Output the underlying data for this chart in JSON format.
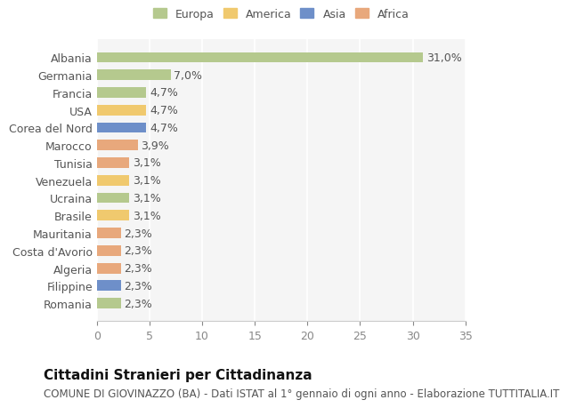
{
  "categories": [
    "Albania",
    "Germania",
    "Francia",
    "USA",
    "Corea del Nord",
    "Marocco",
    "Tunisia",
    "Venezuela",
    "Ucraina",
    "Brasile",
    "Mauritania",
    "Costa d'Avorio",
    "Algeria",
    "Filippine",
    "Romania"
  ],
  "values": [
    31.0,
    7.0,
    4.7,
    4.7,
    4.7,
    3.9,
    3.1,
    3.1,
    3.1,
    3.1,
    2.3,
    2.3,
    2.3,
    2.3,
    2.3
  ],
  "labels": [
    "31,0%",
    "7,0%",
    "4,7%",
    "4,7%",
    "4,7%",
    "3,9%",
    "3,1%",
    "3,1%",
    "3,1%",
    "3,1%",
    "2,3%",
    "2,3%",
    "2,3%",
    "2,3%",
    "2,3%"
  ],
  "colors": [
    "#b5c98e",
    "#b5c98e",
    "#b5c98e",
    "#f0c96e",
    "#6e8fc9",
    "#e8a87c",
    "#e8a87c",
    "#f0c96e",
    "#b5c98e",
    "#f0c96e",
    "#e8a87c",
    "#e8a87c",
    "#e8a87c",
    "#6e8fc9",
    "#b5c98e"
  ],
  "legend_labels": [
    "Europa",
    "America",
    "Asia",
    "Africa"
  ],
  "legend_colors": [
    "#b5c98e",
    "#f0c96e",
    "#6e8fc9",
    "#e8a87c"
  ],
  "xlim": [
    0,
    35
  ],
  "xticks": [
    0,
    5,
    10,
    15,
    20,
    25,
    30,
    35
  ],
  "title": "Cittadini Stranieri per Cittadinanza",
  "subtitle": "COMUNE DI GIOVINAZZO (BA) - Dati ISTAT al 1° gennaio di ogni anno - Elaborazione TUTTITALIA.IT",
  "bg_color": "#ffffff",
  "plot_bg_color": "#f5f5f5",
  "grid_color": "#ffffff",
  "bar_height": 0.6,
  "label_fontsize": 9,
  "tick_fontsize": 9,
  "title_fontsize": 11,
  "subtitle_fontsize": 8.5
}
